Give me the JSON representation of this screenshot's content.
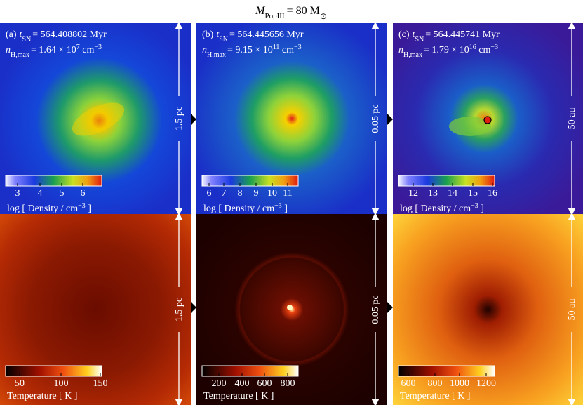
{
  "header": {
    "symbol": "M",
    "symbol_subscript": "PopIII",
    "text": "= 80 M",
    "text_subscript": "⊙"
  },
  "panels": [
    {
      "letter": "(a)",
      "t_symbol": "t",
      "t_subscript": "SN",
      "t_text": "= 564.408802 Myr",
      "n_symbol": "n",
      "n_subscript": "H,max",
      "n_text": "= 1.64 × 10",
      "n_exponent": "7",
      "n_unit": " cm",
      "n_unit_exponent": "−3",
      "density_scale": "1.5 pc",
      "density_ticks": [
        "3",
        "4",
        "5",
        "6"
      ],
      "density_label": "log [ Density / cm",
      "density_label_exponent": "−3",
      "density_label_end": " ]",
      "temperature_scale": "1.5 pc",
      "temperature_ticks": [
        "50",
        "100",
        "150"
      ],
      "temperature_label": "Temperature [ K ]"
    },
    {
      "letter": "(b)",
      "t_symbol": "t",
      "t_subscript": "SN",
      "t_text": "= 564.445656 Myr",
      "n_symbol": "n",
      "n_subscript": "H,max",
      "n_text": "= 9.15 × 10",
      "n_exponent": "11",
      "n_unit": " cm",
      "n_unit_exponent": "−3",
      "density_scale": "0.05 pc",
      "density_ticks": [
        "6",
        "7",
        "8",
        "9",
        "10",
        "11"
      ],
      "density_label": "log [ Density / cm",
      "density_label_exponent": "−3",
      "density_label_end": " ]",
      "temperature_scale": "0.05 pc",
      "temperature_ticks": [
        "200",
        "400",
        "600",
        "800"
      ],
      "temperature_label": "Temperature [ K ]"
    },
    {
      "letter": "(c)",
      "t_symbol": "t",
      "t_subscript": "SN",
      "t_text": "= 564.445741 Myr",
      "n_symbol": "n",
      "n_subscript": "H,max",
      "n_text": "= 1.79 × 10",
      "n_exponent": "16",
      "n_unit": " cm",
      "n_unit_exponent": "−3",
      "density_scale": "50 au",
      "density_ticks": [
        "12",
        "13",
        "14",
        "15",
        "16"
      ],
      "density_label": "log [ Density / cm",
      "density_label_exponent": "−3",
      "density_label_end": " ]",
      "temperature_scale": "50 au",
      "temperature_ticks": [
        "600",
        "800",
        "1000",
        "1200"
      ],
      "temperature_label": "Temperature [ K ]"
    }
  ]
}
